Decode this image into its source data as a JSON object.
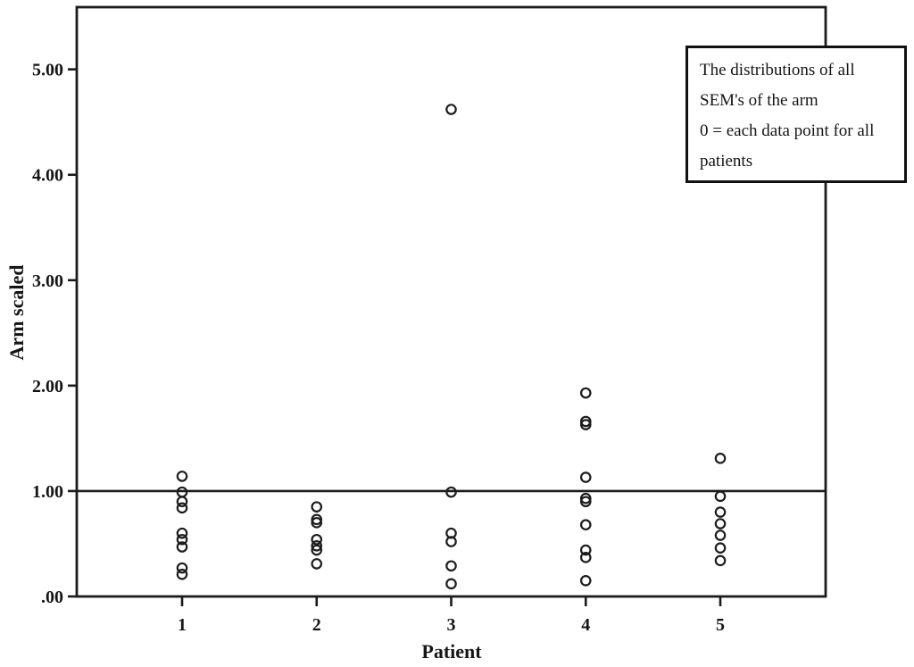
{
  "chart_data": {
    "type": "scatter",
    "title": "",
    "xlabel": "Patient",
    "ylabel": "Arm scaled",
    "x_ticks": [
      "1",
      "2",
      "3",
      "4",
      "5"
    ],
    "y_ticks": [
      ".00",
      "1.00",
      "2.00",
      "3.00",
      "4.00",
      "5.00"
    ],
    "y_tick_values": [
      0,
      1,
      2,
      3,
      4,
      5
    ],
    "ylim": [
      0,
      5.59
    ],
    "grid": false,
    "legend": "none",
    "reference_line_y": 1.0,
    "marker": {
      "shape": "open-circle",
      "radius_px": 5.2,
      "stroke_px": 2.2,
      "color": "#1c1c1c"
    },
    "series": [
      {
        "name": "Patient 1",
        "x": 1,
        "values": [
          1.14,
          0.99,
          0.9,
          0.84,
          0.6,
          0.54,
          0.47,
          0.27,
          0.21
        ]
      },
      {
        "name": "Patient 2",
        "x": 2,
        "values": [
          0.85,
          0.73,
          0.7,
          0.54,
          0.48,
          0.44,
          0.31
        ]
      },
      {
        "name": "Patient 3",
        "x": 3,
        "values": [
          4.62,
          0.99,
          0.6,
          0.52,
          0.29,
          0.12
        ]
      },
      {
        "name": "Patient 4",
        "x": 4,
        "values": [
          1.93,
          1.66,
          1.63,
          1.13,
          0.93,
          0.9,
          0.68,
          0.44,
          0.37,
          0.15
        ]
      },
      {
        "name": "Patient 5",
        "x": 5,
        "values": [
          1.31,
          0.95,
          0.8,
          0.69,
          0.58,
          0.46,
          0.34
        ]
      }
    ]
  },
  "annotation": {
    "lines": [
      "The distributions of all",
      "SEM's of the arm",
      "0 = each data point for all",
      "patients"
    ]
  },
  "colors": {
    "ink": "#1b1b1b",
    "background": "#ffffff"
  }
}
